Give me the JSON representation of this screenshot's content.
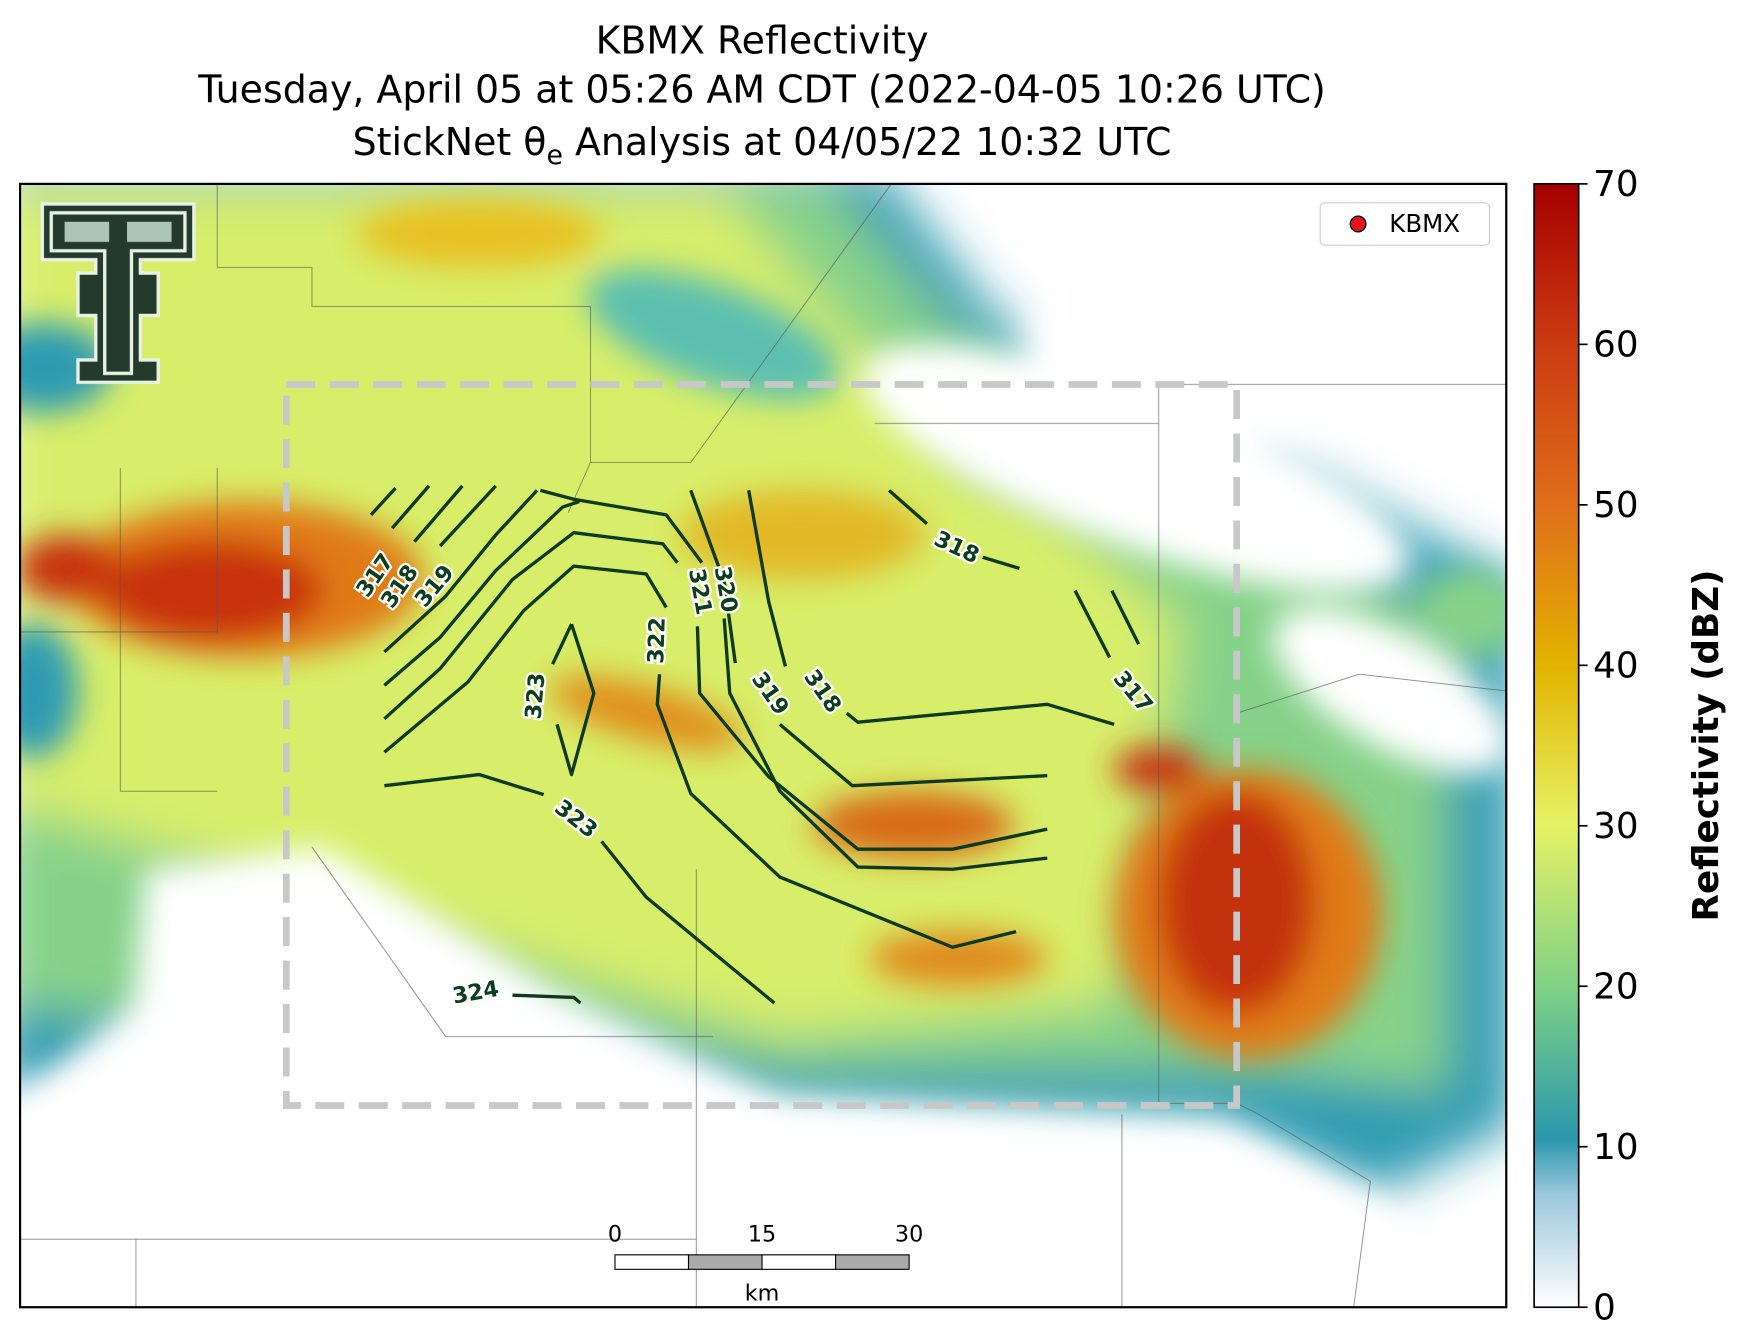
{
  "title": {
    "line1": "KBMX Reflectivity",
    "line2": "Tuesday, April 05 at 05:26 AM CDT (2022-04-05 10:26 UTC)",
    "line3": {
      "prefix": "StickNet θ",
      "subscript": "e",
      "suffix": " Analysis at 04/05/22 10:32 UTC"
    }
  },
  "contour_labels": [
    317,
    318,
    319,
    323,
    322,
    321,
    320,
    319,
    318,
    318,
    317,
    323,
    324
  ],
  "legend": {
    "label": "KBMX",
    "color": "#e8141c"
  },
  "colorbar": {
    "label": "Reflectivity (dBZ)",
    "lim": [
      0,
      70
    ],
    "ticks": [
      0,
      10,
      20,
      30,
      40,
      50,
      60,
      70
    ]
  },
  "scale_bar": {
    "ticks": [
      0,
      15,
      30
    ],
    "unit": "km"
  }
}
